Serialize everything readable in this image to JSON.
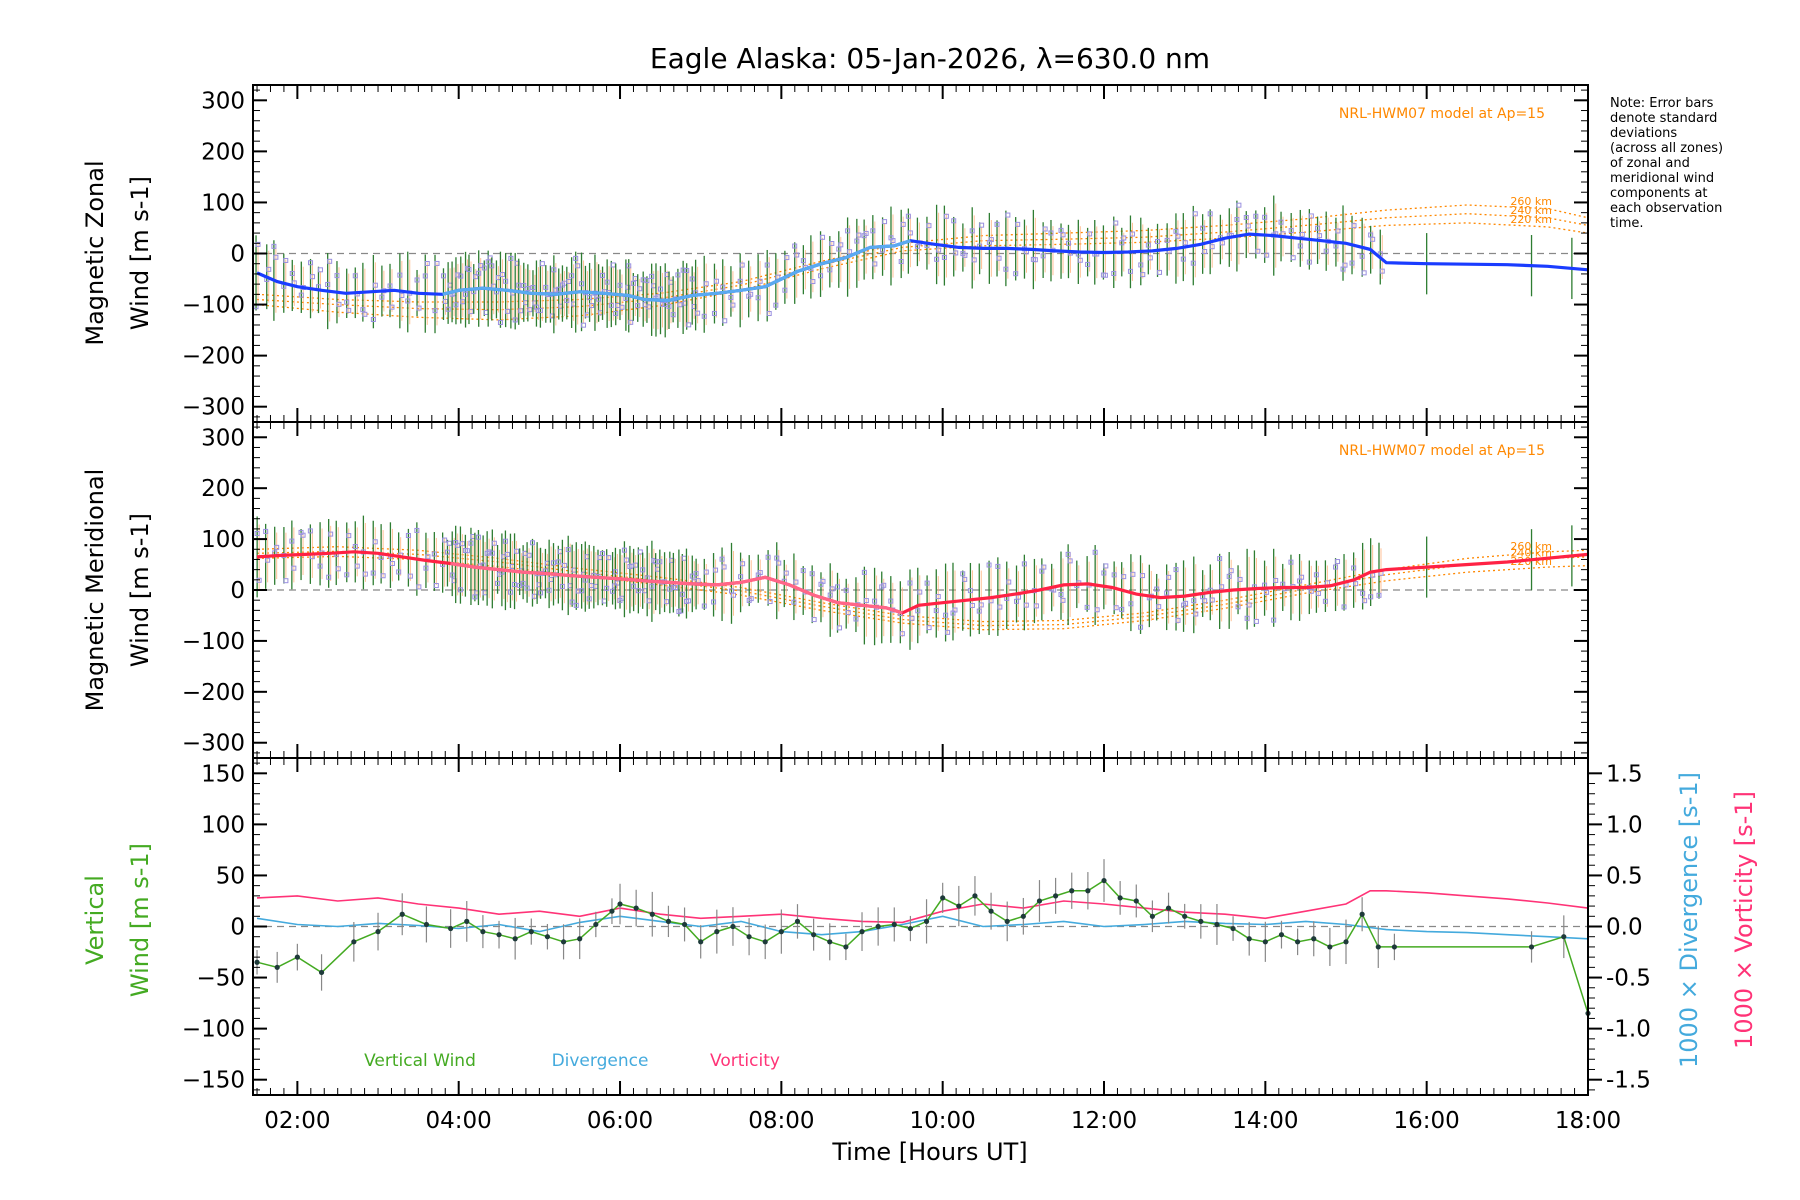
{
  "figure": {
    "title": "Eagle Alaska: 05-Jan-2026, λ=630.0 nm",
    "note_lines": [
      "Note: Error bars",
      "denote standard",
      "deviations",
      "(across all zones)",
      "of zonal and",
      "meridional wind",
      "components at",
      "each observation",
      "time."
    ],
    "xlabel": "Time [Hours UT]",
    "x_ticks": [
      "02:00",
      "04:00",
      "06:00",
      "08:00",
      "10:00",
      "12:00",
      "14:00",
      "16:00",
      "18:00"
    ],
    "x_tick_hours": [
      2,
      4,
      6,
      8,
      10,
      12,
      14,
      16,
      18
    ],
    "xlim": [
      1.45,
      18.0
    ]
  },
  "colors": {
    "zonal": "#1a3cff",
    "zonal_light": "#5aaaf0",
    "meridional": "#ff2244",
    "meridional_light": "#ff6688",
    "model": "#ff8800",
    "vertical": "#44aa22",
    "divergence": "#44aadd",
    "vorticity": "#ff3377",
    "errorbar_green": "#2e7d32",
    "scatter": "#9a90e0",
    "zero_line": "#888888"
  },
  "chart_data": [
    {
      "type": "line",
      "panel": "zonal",
      "ylabel": [
        "Magnetic Zonal",
        "Wind [m s-1]"
      ],
      "ylim": [
        -330,
        330
      ],
      "y_ticks": [
        300,
        200,
        100,
        0,
        -100,
        -200,
        -300
      ],
      "model_label": "NRL-HWM07 model at Ap=15",
      "model_alt_labels": [
        "260 km",
        "240 km",
        "220 km"
      ],
      "series": [
        {
          "name": "Zonal wind",
          "x": [
            1.5,
            1.75,
            2.0,
            2.3,
            2.6,
            2.9,
            3.2,
            3.5,
            3.8,
            4.0,
            4.3,
            4.6,
            4.9,
            5.2,
            5.5,
            5.8,
            6.1,
            6.3,
            6.6,
            6.9,
            7.2,
            7.5,
            7.8,
            8.0,
            8.2,
            8.5,
            8.8,
            9.1,
            9.4,
            9.6,
            9.9,
            10.2,
            10.5,
            10.8,
            11.1,
            11.4,
            11.7,
            12.0,
            12.3,
            12.6,
            12.9,
            13.2,
            13.5,
            13.8,
            14.1,
            14.4,
            14.7,
            15.0,
            15.3,
            15.5,
            16.0,
            17.0,
            17.5,
            18.0
          ],
          "y": [
            -38,
            -55,
            -65,
            -72,
            -78,
            -75,
            -72,
            -78,
            -80,
            -72,
            -68,
            -72,
            -78,
            -80,
            -75,
            -78,
            -82,
            -90,
            -92,
            -82,
            -78,
            -72,
            -65,
            -50,
            -35,
            -20,
            -8,
            12,
            15,
            25,
            18,
            12,
            10,
            10,
            8,
            5,
            3,
            2,
            3,
            5,
            10,
            18,
            30,
            38,
            35,
            30,
            25,
            20,
            8,
            -18,
            -20,
            -22,
            -25,
            -32
          ]
        },
        {
          "name": "Model 260 km",
          "x": [
            1.5,
            2.5,
            3.5,
            4.5,
            5.5,
            6.5,
            7.5,
            8.5,
            9.5,
            10.5,
            11.5,
            12.5,
            13.5,
            14.5,
            15.5,
            16.5,
            17.5,
            18.0
          ],
          "y": [
            -80,
            -90,
            -95,
            -95,
            -90,
            -78,
            -55,
            -15,
            20,
            35,
            40,
            45,
            55,
            68,
            85,
            95,
            88,
            70
          ]
        },
        {
          "name": "Model 240 km",
          "x": [
            1.5,
            2.5,
            3.5,
            4.5,
            5.5,
            6.5,
            7.5,
            8.5,
            9.5,
            10.5,
            11.5,
            12.5,
            13.5,
            14.5,
            15.5,
            16.5,
            17.5,
            18.0
          ],
          "y": [
            -90,
            -100,
            -108,
            -110,
            -104,
            -88,
            -62,
            -22,
            12,
            25,
            28,
            32,
            42,
            55,
            70,
            78,
            70,
            55
          ]
        },
        {
          "name": "Model 220 km",
          "x": [
            1.5,
            2.5,
            3.5,
            4.5,
            5.5,
            6.5,
            7.5,
            8.5,
            9.5,
            10.5,
            11.5,
            12.5,
            13.5,
            14.5,
            15.5,
            16.5,
            17.5,
            18.0
          ],
          "y": [
            -100,
            -115,
            -125,
            -130,
            -122,
            -102,
            -72,
            -30,
            5,
            15,
            18,
            22,
            30,
            42,
            55,
            60,
            52,
            40
          ]
        }
      ]
    },
    {
      "type": "line",
      "panel": "meridional",
      "ylabel": [
        "Magnetic Meridional",
        "Wind [m s-1]"
      ],
      "ylim": [
        -330,
        330
      ],
      "y_ticks": [
        300,
        200,
        100,
        0,
        -100,
        -200,
        -300
      ],
      "model_label": "NRL-HWM07 model at Ap=15",
      "model_alt_labels": [
        "260 km",
        "240 km",
        "220 km"
      ],
      "series": [
        {
          "name": "Meridional wind",
          "x": [
            1.5,
            1.8,
            2.1,
            2.4,
            2.7,
            3.0,
            3.3,
            3.6,
            3.9,
            4.2,
            4.5,
            4.8,
            5.1,
            5.4,
            5.7,
            6.0,
            6.3,
            6.6,
            6.9,
            7.2,
            7.5,
            7.8,
            8.1,
            8.4,
            8.7,
            9.0,
            9.3,
            9.5,
            9.7,
            10.0,
            10.3,
            10.6,
            10.9,
            11.2,
            11.5,
            11.8,
            12.1,
            12.4,
            12.7,
            13.0,
            13.3,
            13.6,
            13.9,
            14.2,
            14.5,
            14.8,
            15.1,
            15.3,
            15.5,
            16.0,
            17.0,
            18.0
          ],
          "y": [
            65,
            68,
            70,
            72,
            75,
            72,
            65,
            58,
            52,
            45,
            40,
            35,
            32,
            28,
            25,
            22,
            18,
            15,
            12,
            10,
            15,
            25,
            10,
            -10,
            -25,
            -30,
            -35,
            -45,
            -30,
            -25,
            -20,
            -15,
            -8,
            0,
            10,
            12,
            5,
            -8,
            -15,
            -12,
            -5,
            0,
            3,
            5,
            5,
            8,
            20,
            35,
            40,
            45,
            55,
            70
          ]
        },
        {
          "name": "Model 260 km",
          "x": [
            1.5,
            2.5,
            3.5,
            4.5,
            5.5,
            6.5,
            7.5,
            8.5,
            9.5,
            10.5,
            11.5,
            12.5,
            13.5,
            14.5,
            15.5,
            16.5,
            17.5,
            18.0
          ],
          "y": [
            80,
            85,
            78,
            62,
            42,
            25,
            5,
            -25,
            -50,
            -62,
            -60,
            -45,
            -20,
            10,
            40,
            62,
            75,
            78
          ]
        },
        {
          "name": "Model 240 km",
          "x": [
            1.5,
            2.5,
            3.5,
            4.5,
            5.5,
            6.5,
            7.5,
            8.5,
            9.5,
            10.5,
            11.5,
            12.5,
            13.5,
            14.5,
            15.5,
            16.5,
            17.5,
            18.0
          ],
          "y": [
            72,
            76,
            70,
            55,
            35,
            18,
            -2,
            -32,
            -58,
            -70,
            -68,
            -52,
            -28,
            2,
            30,
            50,
            62,
            65
          ]
        },
        {
          "name": "Model 220 km",
          "x": [
            1.5,
            2.5,
            3.5,
            4.5,
            5.5,
            6.5,
            7.5,
            8.5,
            9.5,
            10.5,
            11.5,
            12.5,
            13.5,
            14.5,
            15.5,
            16.5,
            17.5,
            18.0
          ],
          "y": [
            62,
            66,
            60,
            46,
            28,
            10,
            -10,
            -40,
            -65,
            -78,
            -76,
            -60,
            -36,
            -6,
            18,
            35,
            45,
            48
          ]
        }
      ]
    },
    {
      "type": "line",
      "panel": "vertical",
      "ylabel": [
        "Vertical",
        "Wind [m s-1]"
      ],
      "ylim": [
        -165,
        165
      ],
      "y_ticks": [
        150,
        100,
        50,
        0,
        -50,
        -100,
        -150
      ],
      "y2label_divergence": "1000 × Divergence [s-1]",
      "y2label_vorticity": "1000 × Vorticity [s-1]",
      "y2lim": [
        -1.65,
        1.65
      ],
      "y2_ticks": [
        1.5,
        1.0,
        0.5,
        0.0,
        -0.5,
        -1.0,
        -1.5
      ],
      "legend": [
        "Vertical Wind",
        "Divergence",
        "Vorticity"
      ],
      "series": [
        {
          "name": "Vertical Wind",
          "axis": "left",
          "x": [
            1.5,
            1.75,
            2.0,
            2.3,
            2.7,
            3.0,
            3.3,
            3.6,
            3.9,
            4.1,
            4.3,
            4.5,
            4.7,
            4.9,
            5.1,
            5.3,
            5.5,
            5.7,
            5.9,
            6.0,
            6.2,
            6.4,
            6.6,
            6.8,
            7.0,
            7.2,
            7.4,
            7.6,
            7.8,
            8.0,
            8.2,
            8.4,
            8.6,
            8.8,
            9.0,
            9.2,
            9.4,
            9.6,
            9.8,
            10.0,
            10.2,
            10.4,
            10.6,
            10.8,
            11.0,
            11.2,
            11.4,
            11.6,
            11.8,
            12.0,
            12.2,
            12.4,
            12.6,
            12.8,
            13.0,
            13.2,
            13.4,
            13.6,
            13.8,
            14.0,
            14.2,
            14.4,
            14.6,
            14.8,
            15.0,
            15.2,
            15.4,
            15.6,
            17.3,
            17.7,
            18.0
          ],
          "y": [
            -35,
            -40,
            -30,
            -45,
            -15,
            -5,
            12,
            2,
            -2,
            5,
            -5,
            -8,
            -12,
            -5,
            -10,
            -15,
            -12,
            2,
            15,
            22,
            18,
            12,
            5,
            2,
            -15,
            -5,
            0,
            -10,
            -15,
            -5,
            5,
            -8,
            -15,
            -20,
            -5,
            0,
            2,
            -2,
            5,
            28,
            20,
            30,
            15,
            5,
            10,
            25,
            30,
            35,
            35,
            45,
            28,
            25,
            10,
            18,
            10,
            5,
            2,
            -2,
            -12,
            -15,
            -8,
            -15,
            -12,
            -20,
            -15,
            12,
            -20,
            -20,
            -20,
            -10,
            -85
          ]
        },
        {
          "name": "Divergence",
          "axis": "right",
          "x": [
            1.5,
            2.0,
            2.5,
            3.0,
            3.5,
            4.0,
            4.5,
            5.0,
            5.5,
            6.0,
            6.5,
            7.0,
            7.5,
            8.0,
            8.5,
            9.0,
            9.5,
            10.0,
            10.5,
            11.0,
            11.5,
            12.0,
            12.5,
            13.0,
            13.5,
            14.0,
            14.5,
            15.0,
            15.5,
            16.0,
            16.5,
            17.0,
            17.5,
            18.0
          ],
          "y": [
            0.08,
            0.02,
            0.0,
            0.03,
            0.01,
            -0.02,
            0.02,
            -0.05,
            0.04,
            0.1,
            0.05,
            0.0,
            0.05,
            -0.05,
            -0.08,
            -0.05,
            0.02,
            0.1,
            0.0,
            0.02,
            0.05,
            0.0,
            0.02,
            0.05,
            0.03,
            0.02,
            0.05,
            0.02,
            -0.03,
            -0.05,
            -0.06,
            -0.08,
            -0.1,
            -0.12
          ]
        },
        {
          "name": "Vorticity",
          "axis": "right",
          "x": [
            1.5,
            2.0,
            2.5,
            3.0,
            3.5,
            4.0,
            4.5,
            5.0,
            5.5,
            6.0,
            6.5,
            7.0,
            7.5,
            8.0,
            8.5,
            9.0,
            9.5,
            10.0,
            10.5,
            11.0,
            11.5,
            12.0,
            12.5,
            13.0,
            13.5,
            14.0,
            14.5,
            15.0,
            15.3,
            15.5,
            16.0,
            16.5,
            17.0,
            17.5,
            18.0
          ],
          "y": [
            0.28,
            0.3,
            0.25,
            0.28,
            0.22,
            0.18,
            0.12,
            0.15,
            0.1,
            0.18,
            0.12,
            0.08,
            0.1,
            0.12,
            0.08,
            0.05,
            0.04,
            0.15,
            0.22,
            0.18,
            0.25,
            0.22,
            0.18,
            0.14,
            0.12,
            0.08,
            0.15,
            0.22,
            0.35,
            0.35,
            0.33,
            0.3,
            0.27,
            0.23,
            0.18
          ]
        }
      ]
    }
  ]
}
